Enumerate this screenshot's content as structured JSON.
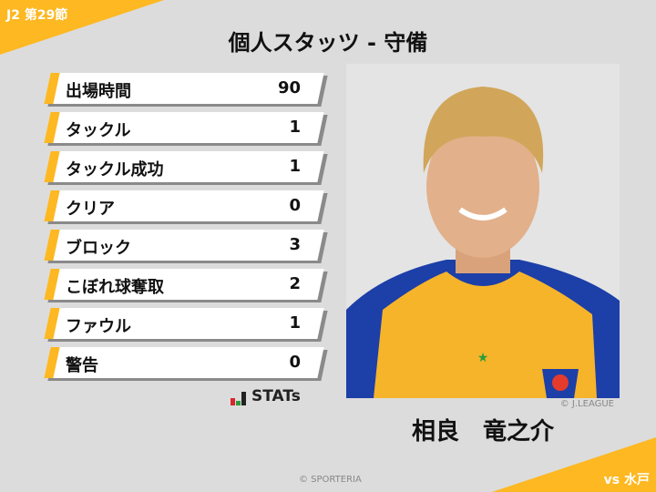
{
  "header": {
    "round": "J2 第29節",
    "title": "個人スタッツ - 守備"
  },
  "stats": [
    {
      "label": "出場時間",
      "value": "90"
    },
    {
      "label": "タックル",
      "value": "1"
    },
    {
      "label": "タックル成功",
      "value": "1"
    },
    {
      "label": "クリア",
      "value": "0"
    },
    {
      "label": "ブロック",
      "value": "3"
    },
    {
      "label": "こぼれ球奪取",
      "value": "2"
    },
    {
      "label": "ファウル",
      "value": "1"
    },
    {
      "label": "警告",
      "value": "0"
    }
  ],
  "brand": {
    "stats_logo": "STATs",
    "copyright": "© SPORTERIA"
  },
  "player": {
    "name": "相良　竜之介",
    "photo_credit": "© J.LEAGUE"
  },
  "match": {
    "opponent": "vs 水戸"
  },
  "colors": {
    "accent": "#fdb822",
    "background": "#dcdcdc"
  }
}
